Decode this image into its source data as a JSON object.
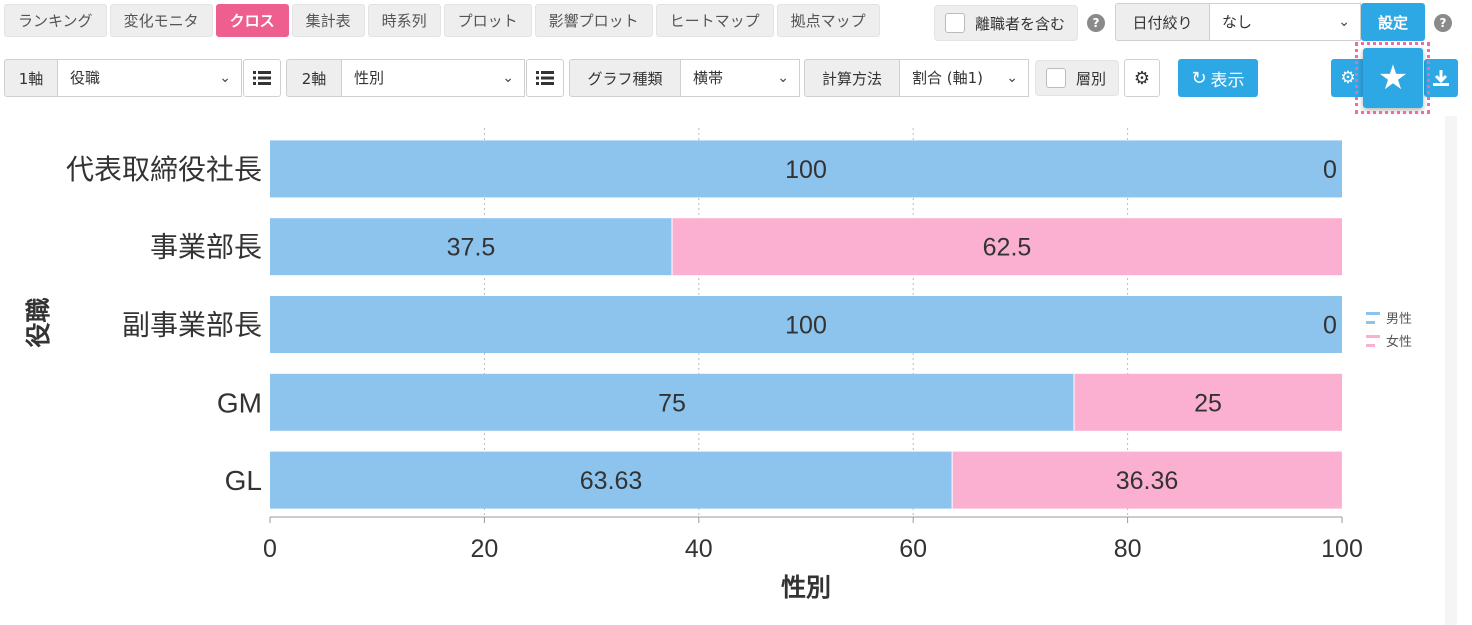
{
  "tabs": [
    {
      "label": "ランキング",
      "active": false
    },
    {
      "label": "変化モニタ",
      "active": false
    },
    {
      "label": "クロス",
      "active": true
    },
    {
      "label": "集計表",
      "active": false
    },
    {
      "label": "時系列",
      "active": false
    },
    {
      "label": "プロット",
      "active": false
    },
    {
      "label": "影響プロット",
      "active": false
    },
    {
      "label": "ヒートマップ",
      "active": false
    },
    {
      "label": "拠点マップ",
      "active": false
    }
  ],
  "header": {
    "include_retired_label": "離職者を含む",
    "date_filter_label": "日付絞り",
    "date_filter_value": "なし",
    "settings_button": "設定",
    "help_glyph": "?"
  },
  "controls": {
    "axis1_label": "1軸",
    "axis1_value": "役職",
    "axis2_label": "2軸",
    "axis2_value": "性別",
    "graph_type_label": "グラフ種類",
    "graph_type_value": "横帯",
    "calc_method_label": "計算方法",
    "calc_method_value": "割合 (軸1)",
    "layer_label": "層別",
    "show_button": "表示"
  },
  "colors": {
    "male": "#8cc4ee",
    "female": "#fbb0d2",
    "accent": "#ee5f90",
    "primary_button": "#2ea8e5"
  },
  "chart_data": {
    "type": "bar",
    "orientation": "horizontal",
    "stacked": true,
    "categories": [
      "代表取締役社長",
      "事業部長",
      "副事業部長",
      "GM",
      "GL"
    ],
    "series": [
      {
        "name": "男性",
        "values": [
          100,
          37.5,
          100,
          75,
          63.63
        ]
      },
      {
        "name": "女性",
        "values": [
          0,
          62.5,
          0,
          25,
          36.36
        ]
      }
    ],
    "xlabel": "性別",
    "ylabel": "役職",
    "xlim": [
      0,
      100
    ],
    "xticks": [
      0,
      20,
      40,
      60,
      80,
      100
    ],
    "grid": true,
    "legend": "right"
  }
}
